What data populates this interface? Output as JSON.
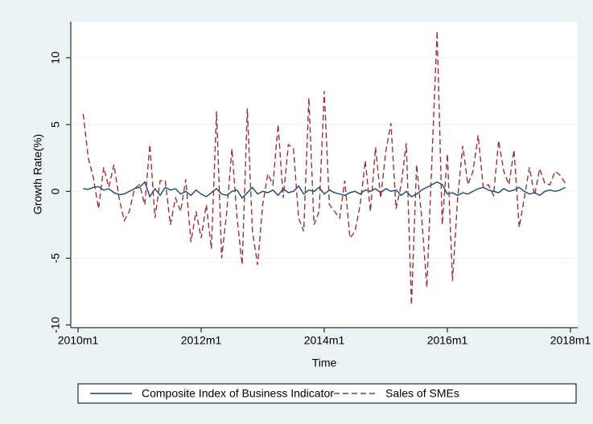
{
  "chart_data": {
    "type": "line",
    "xlabel": "Time",
    "ylabel": "Growth Rate(%)",
    "x": [
      "2010m2",
      "2010m3",
      "2010m4",
      "2010m5",
      "2010m6",
      "2010m7",
      "2010m8",
      "2010m9",
      "2010m10",
      "2010m11",
      "2010m12",
      "2011m1",
      "2011m2",
      "2011m3",
      "2011m4",
      "2011m5",
      "2011m6",
      "2011m7",
      "2011m8",
      "2011m9",
      "2011m10",
      "2011m11",
      "2011m12",
      "2012m1",
      "2012m2",
      "2012m3",
      "2012m4",
      "2012m5",
      "2012m6",
      "2012m7",
      "2012m8",
      "2012m9",
      "2012m10",
      "2012m11",
      "2012m12",
      "2013m1",
      "2013m2",
      "2013m3",
      "2013m4",
      "2013m5",
      "2013m6",
      "2013m7",
      "2013m8",
      "2013m9",
      "2013m10",
      "2013m11",
      "2013m12",
      "2014m1",
      "2014m2",
      "2014m3",
      "2014m4",
      "2014m5",
      "2014m6",
      "2014m7",
      "2014m8",
      "2014m9",
      "2014m10",
      "2014m11",
      "2014m12",
      "2015m1",
      "2015m2",
      "2015m3",
      "2015m4",
      "2015m5",
      "2015m6",
      "2015m7",
      "2015m8",
      "2015m9",
      "2015m10",
      "2015m11",
      "2015m12",
      "2016m1",
      "2016m2",
      "2016m3",
      "2016m4",
      "2016m5",
      "2016m6",
      "2016m7",
      "2016m8",
      "2016m9",
      "2016m10",
      "2016m11",
      "2016m12",
      "2017m1",
      "2017m2",
      "2017m3",
      "2017m4",
      "2017m5",
      "2017m6",
      "2017m7",
      "2017m8",
      "2017m9",
      "2017m10",
      "2017m11",
      "2017m12"
    ],
    "series": [
      {
        "name": "Composite Index of Business Indicator",
        "color": "#1a476f",
        "dash": false,
        "values": [
          0.2,
          0.15,
          0.3,
          0.35,
          0.1,
          0.2,
          -0.1,
          -0.25,
          -0.2,
          0,
          0.2,
          0.3,
          0.7,
          -0.4,
          0.2,
          -0.3,
          0.3,
          0.1,
          0.2,
          -0.2,
          0,
          -0.3,
          0.1,
          -0.2,
          -0.4,
          -0.1,
          0.2,
          -0.2,
          -0.3,
          0,
          0.1,
          -0.5,
          -0.1,
          0.3,
          -0.2,
          0,
          -0.1,
          0.1,
          -0.3,
          0.2,
          -0.1,
          0,
          0.4,
          -0.2,
          0.1,
          0,
          0.3,
          -0.2,
          0.1,
          -0.1,
          -0.2,
          -0.3,
          -0.1,
          0,
          -0.2,
          0.1,
          0,
          0.2,
          -0.1,
          0.2,
          0,
          0.1,
          -0.3,
          0,
          -0.4,
          -0.2,
          0.1,
          0.3,
          0.5,
          0.7,
          0.5,
          -0.2,
          -0.1,
          -0.3,
          -0.1,
          -0.2,
          0,
          0.2,
          0.3,
          0.1,
          0,
          -0.1,
          0.2,
          0,
          0.1,
          0.3,
          0,
          -0.2,
          -0.1,
          -0.3,
          0,
          0.1,
          0,
          0.1,
          0.3
        ]
      },
      {
        "name": "Sales of SMEs",
        "color": "#90353b",
        "dash": true,
        "values": [
          5.8,
          2.5,
          1.0,
          -1.3,
          1.8,
          0.3,
          2.0,
          -0.5,
          -2.2,
          -1.5,
          0.2,
          0.5,
          -1.0,
          3.5,
          -2.0,
          0.8,
          0.8,
          -2.5,
          -0.5,
          -1.5,
          0.9,
          -3.8,
          -1.5,
          -3.5,
          -1.0,
          -4.3,
          6.0,
          -5.0,
          -1.5,
          3.2,
          -2.0,
          -5.5,
          6.2,
          -3.0,
          -5.5,
          -1.0,
          1.3,
          0.5,
          5.0,
          -0.5,
          3.5,
          3.2,
          -2.0,
          -3.0,
          7.0,
          -2.5,
          -1.5,
          7.5,
          -1.0,
          -1.5,
          -2.0,
          0.8,
          -3.5,
          -3.0,
          -1.0,
          2.3,
          -1.5,
          3.3,
          -0.5,
          3.0,
          5.1,
          -1.3,
          0.5,
          3.6,
          -8.5,
          2.0,
          -2.0,
          -7.2,
          2.5,
          12.0,
          -2.5,
          2.8,
          -6.7,
          -0.5,
          3.4,
          0.5,
          1.5,
          4.2,
          0.3,
          0.5,
          -0.3,
          3.8,
          1.5,
          0.5,
          3.1,
          -2.7,
          -0.5,
          1.8,
          -0.3,
          1.7,
          0.6,
          0.5,
          1.5,
          1.2,
          0.6
        ]
      }
    ],
    "xlim": [
      "2010m1",
      "2018m1"
    ],
    "xticks": [
      "2010m1",
      "2012m1",
      "2014m1",
      "2016m1",
      "2018m1"
    ],
    "ylim": [
      -10.2,
      12.7
    ],
    "yticks": [
      -10,
      -5,
      0,
      5,
      10
    ],
    "grid": true,
    "legend": "bottom"
  }
}
